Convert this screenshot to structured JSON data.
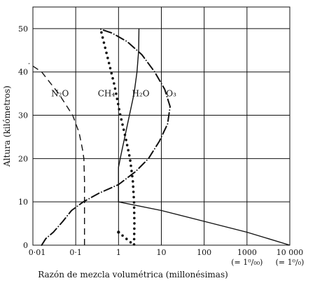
{
  "chart_data": {
    "type": "line",
    "xlabel": "Razón de mezcla volumétrica (millonésimas)",
    "ylabel": "Altura (kilómetros)",
    "x_scale": "log",
    "xlim": [
      0.01,
      10000
    ],
    "ylim": [
      0,
      55
    ],
    "grid": true,
    "x_ticks": [
      {
        "value": 0.01,
        "label": "0·01"
      },
      {
        "value": 0.1,
        "label": "0·1"
      },
      {
        "value": 1,
        "label": "1"
      },
      {
        "value": 10,
        "label": "10"
      },
      {
        "value": 100,
        "label": "100"
      },
      {
        "value": 1000,
        "label": "1000"
      },
      {
        "value": 10000,
        "label": "10 000"
      }
    ],
    "y_ticks": [
      0,
      10,
      20,
      30,
      40,
      50
    ],
    "notes": [
      {
        "text": "(= 1⁰/₀₀)",
        "x": 1000
      },
      {
        "text": "(= 1⁰/₀)",
        "x": 10000
      }
    ],
    "series": [
      {
        "name": "N₂O",
        "style": "dashed",
        "label_at": [
          0.043,
          35
        ],
        "points": [
          [
            0.16,
            0
          ],
          [
            0.16,
            8
          ],
          [
            0.16,
            15
          ],
          [
            0.155,
            20
          ],
          [
            0.145,
            22
          ],
          [
            0.12,
            26
          ],
          [
            0.085,
            30
          ],
          [
            0.04,
            35
          ],
          [
            0.016,
            40
          ],
          [
            0.008,
            42
          ]
        ]
      },
      {
        "name": "CH₄",
        "style": "dotted",
        "label_at": [
          0.52,
          35
        ],
        "points": [
          [
            1.0,
            3
          ],
          [
            2.3,
            0
          ],
          [
            2.35,
            5
          ],
          [
            2.3,
            10
          ],
          [
            2.15,
            15
          ],
          [
            1.85,
            20
          ],
          [
            1.45,
            25
          ],
          [
            1.1,
            30
          ],
          [
            0.8,
            37
          ],
          [
            0.6,
            42
          ],
          [
            0.45,
            47
          ],
          [
            0.38,
            50
          ]
        ]
      },
      {
        "name": "H₂O",
        "style": "solid",
        "label_at": [
          3.3,
          35
        ],
        "points": [
          [
            10000,
            0
          ],
          [
            1000,
            3
          ],
          [
            100,
            5.5
          ],
          [
            10,
            8
          ],
          [
            1,
            10
          ],
          [
            1,
            12
          ],
          [
            1,
            15
          ],
          [
            1,
            18
          ],
          [
            1.15,
            21
          ],
          [
            1.4,
            25
          ],
          [
            1.8,
            30
          ],
          [
            2.3,
            35
          ],
          [
            2.7,
            40
          ],
          [
            2.95,
            45
          ],
          [
            3.0,
            50
          ]
        ]
      },
      {
        "name": "O₃",
        "style": "dash-dot",
        "label_at": [
          17,
          35
        ],
        "points": [
          [
            0.016,
            0
          ],
          [
            0.02,
            1.5
          ],
          [
            0.03,
            3
          ],
          [
            0.05,
            5.5
          ],
          [
            0.08,
            8
          ],
          [
            0.15,
            10
          ],
          [
            0.35,
            12
          ],
          [
            1.0,
            14
          ],
          [
            2.5,
            17
          ],
          [
            5,
            20
          ],
          [
            9,
            24
          ],
          [
            14,
            28
          ],
          [
            16,
            32
          ],
          [
            12,
            36
          ],
          [
            7,
            40
          ],
          [
            3.5,
            44
          ],
          [
            1.6,
            47
          ],
          [
            0.7,
            49
          ],
          [
            0.35,
            50
          ]
        ]
      }
    ]
  }
}
